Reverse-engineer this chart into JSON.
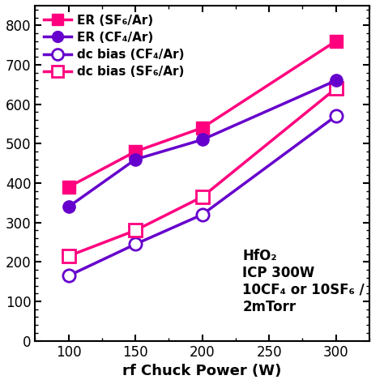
{
  "x": [
    100,
    150,
    200,
    300
  ],
  "er_sf6": [
    390,
    480,
    540,
    760
  ],
  "er_cf4": [
    340,
    460,
    510,
    660
  ],
  "dcbias_cf4": [
    165,
    245,
    320,
    570
  ],
  "dcbias_sf6": [
    215,
    280,
    365,
    640
  ],
  "color_sf6": "#FF007F",
  "color_cf4": "#6600CC",
  "xlabel": "rf Chuck Power (W)",
  "ylabel": "",
  "xlim": [
    75,
    325
  ],
  "ylim": [
    0,
    850
  ],
  "xticks": [
    100,
    150,
    200,
    250,
    300
  ],
  "annotation": "HfO₂\nICP 300W\n10CF₄ or 10SF₆ /\n2mTorr",
  "legend_er_sf6": "ER (SF₆/Ar)",
  "legend_er_cf4": "ER (CF₄/Ar)",
  "legend_dcbias_cf4": "dc bias (CF₄/Ar)",
  "legend_dcbias_sf6": "dc bias (SF₆/Ar)"
}
